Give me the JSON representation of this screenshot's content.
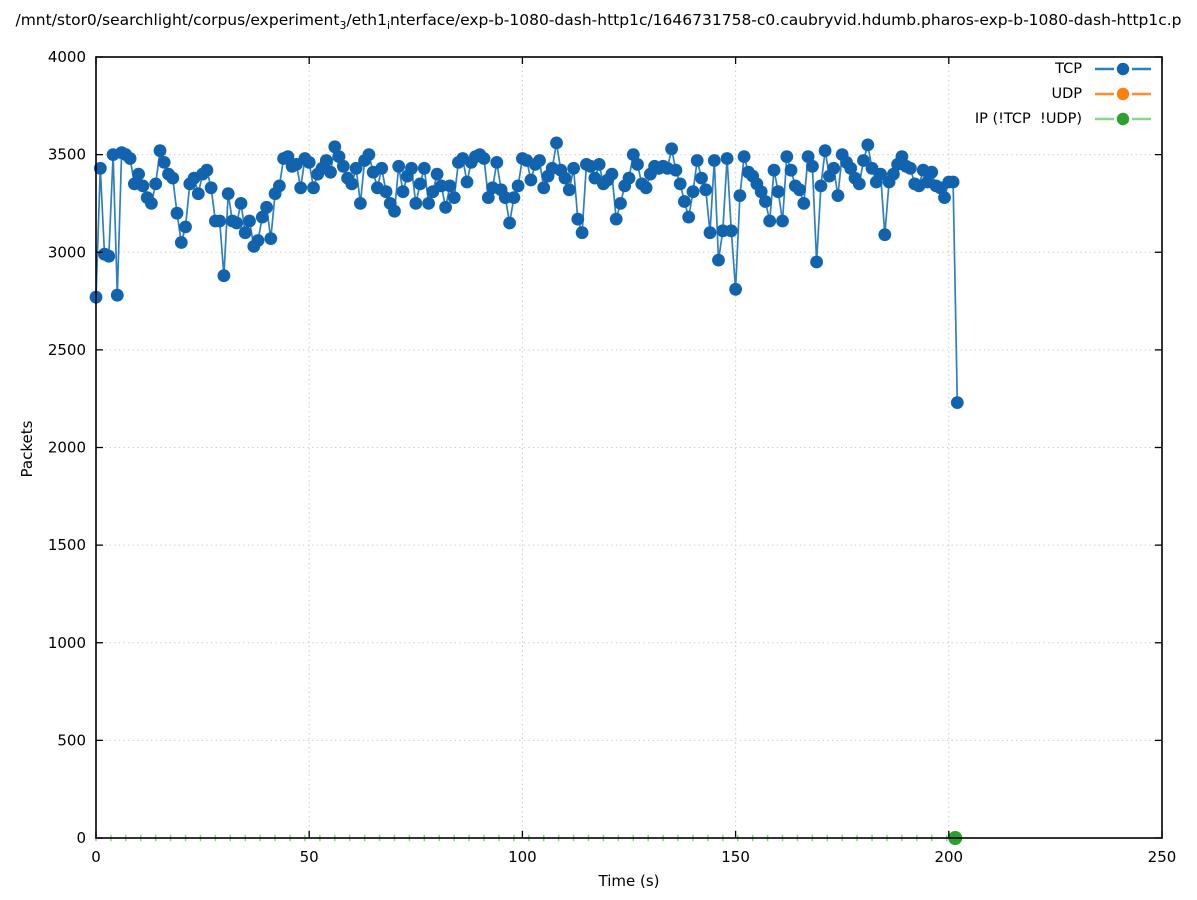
{
  "chart_data": {
    "type": "line",
    "title_parts": [
      "/mnt/stor0/searchlight/corpus/experiment",
      "3",
      "/eth1",
      "i",
      "nterface/exp-b-1080-dash-http1c/1646731758-c0.caubryvid.hdumb.pharos-exp-b-1080-dash-http1c.p"
    ],
    "xlabel": "Time (s)",
    "ylabel": "Packets",
    "xlim": [
      0,
      250
    ],
    "ylim": [
      0,
      4000
    ],
    "xticks": [
      0,
      50,
      100,
      150,
      200,
      250
    ],
    "yticks": [
      0,
      500,
      1000,
      1500,
      2000,
      2500,
      3000,
      3500,
      4000
    ],
    "grid": "dotted at major ticks",
    "grid_color": "#c6c6c6",
    "axis_color": "#000000",
    "legend_position": "top-right, no frame",
    "series": [
      {
        "name": "TCP",
        "marker_color": "#1263ae",
        "line_color": "#2f7fc0",
        "x_start": 0,
        "x_step": 1,
        "y": [
          2770,
          3430,
          2990,
          2980,
          3500,
          2780,
          3510,
          3500,
          3480,
          3350,
          3400,
          3340,
          3280,
          3250,
          3350,
          3520,
          3460,
          3400,
          3380,
          3200,
          3050,
          3130,
          3350,
          3380,
          3300,
          3400,
          3420,
          3330,
          3160,
          3160,
          2880,
          3300,
          3160,
          3150,
          3250,
          3100,
          3160,
          3030,
          3060,
          3180,
          3230,
          3070,
          3300,
          3340,
          3480,
          3490,
          3440,
          3450,
          3330,
          3480,
          3460,
          3330,
          3400,
          3430,
          3470,
          3410,
          3540,
          3490,
          3440,
          3380,
          3350,
          3430,
          3250,
          3470,
          3500,
          3410,
          3330,
          3430,
          3310,
          3250,
          3210,
          3440,
          3310,
          3390,
          3430,
          3250,
          3350,
          3430,
          3250,
          3310,
          3400,
          3340,
          3230,
          3340,
          3280,
          3460,
          3480,
          3360,
          3460,
          3490,
          3500,
          3480,
          3280,
          3330,
          3460,
          3320,
          3280,
          3150,
          3280,
          3340,
          3480,
          3470,
          3370,
          3450,
          3470,
          3330,
          3390,
          3430,
          3560,
          3420,
          3380,
          3320,
          3430,
          3170,
          3100,
          3450,
          3440,
          3380,
          3450,
          3350,
          3370,
          3400,
          3170,
          3250,
          3340,
          3380,
          3500,
          3450,
          3350,
          3330,
          3400,
          3440,
          3430,
          3440,
          3430,
          3530,
          3420,
          3350,
          3260,
          3180,
          3310,
          3470,
          3380,
          3320,
          3100,
          3470,
          2960,
          3110,
          3480,
          3110,
          2810,
          3290,
          3490,
          3410,
          3390,
          3350,
          3310,
          3260,
          3160,
          3420,
          3310,
          3160,
          3490,
          3420,
          3340,
          3320,
          3250,
          3490,
          3440,
          2950,
          3340,
          3520,
          3390,
          3430,
          3290,
          3500,
          3460,
          3430,
          3380,
          3350,
          3470,
          3550,
          3430,
          3360,
          3400,
          3090,
          3360,
          3400,
          3450,
          3490,
          3440,
          3430,
          3350,
          3340,
          3420,
          3360,
          3410,
          3340,
          3330,
          3280,
          3360,
          3360,
          2230
        ]
      },
      {
        "name": "UDP",
        "marker_color": "#ff7f0e",
        "line_color": "#ff8c26",
        "visible_in_plot": false
      },
      {
        "name": "IP (!TCP  !UDP)",
        "marker_color": "#2ca02c",
        "line_color": "#8fd18f",
        "constant_y": 0,
        "x_start": 0,
        "x_end": 202,
        "dash_step_s": 3.5,
        "end_marker_x": 201.5
      }
    ]
  }
}
